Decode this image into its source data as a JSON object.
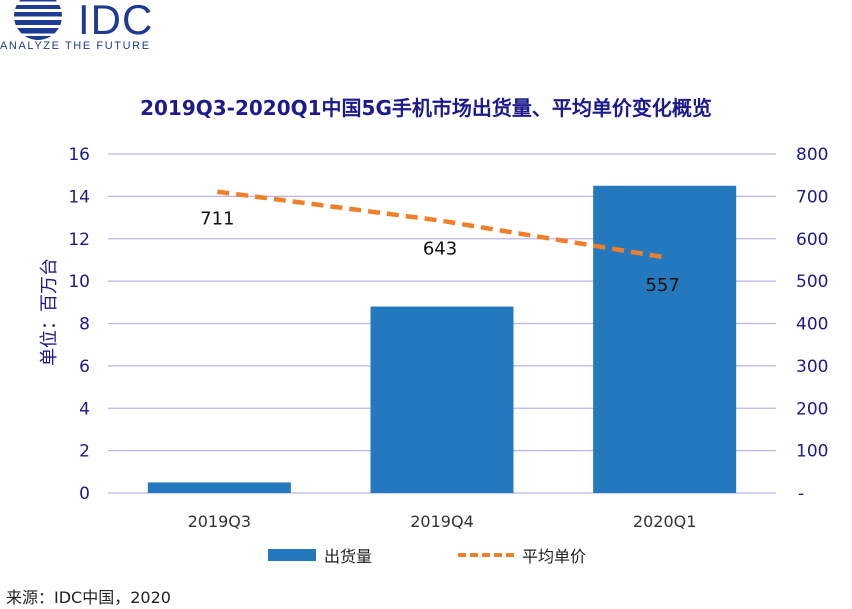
{
  "logo": {
    "text": "IDC",
    "tagline": "ANALYZE THE FUTURE"
  },
  "colors": {
    "bar": "#2478be",
    "line": "#f07f2a",
    "title": "#1c1a8c",
    "grid": "#b9b6e6",
    "axis_text": "#1c1a8c"
  },
  "source": "来源：IDC中国，2020",
  "chart_data": {
    "type": "bar",
    "title": "2019Q3-2020Q1中国5G手机市场出货量、平均单价变化概览",
    "ylabel": "单位：百万台",
    "categories": [
      "2019Q3",
      "2019Q4",
      "2020Q1"
    ],
    "ylim": [
      0,
      16
    ],
    "yticks": [
      "0",
      "2",
      "4",
      "6",
      "8",
      "10",
      "12",
      "14",
      "16"
    ],
    "y2lim": [
      0,
      800
    ],
    "y2ticks": [
      "-",
      "100",
      "200",
      "300",
      "400",
      "500",
      "600",
      "700",
      "800"
    ],
    "grid": true,
    "legend_position": "bottom",
    "series": [
      {
        "name": "出货量",
        "type": "bar",
        "axis": "left",
        "values": [
          0.5,
          8.8,
          14.5
        ]
      },
      {
        "name": "平均单价",
        "type": "line",
        "style": "dashed",
        "axis": "right",
        "values": [
          711,
          643,
          557
        ],
        "labels": [
          "711",
          "643",
          "557"
        ]
      }
    ]
  }
}
